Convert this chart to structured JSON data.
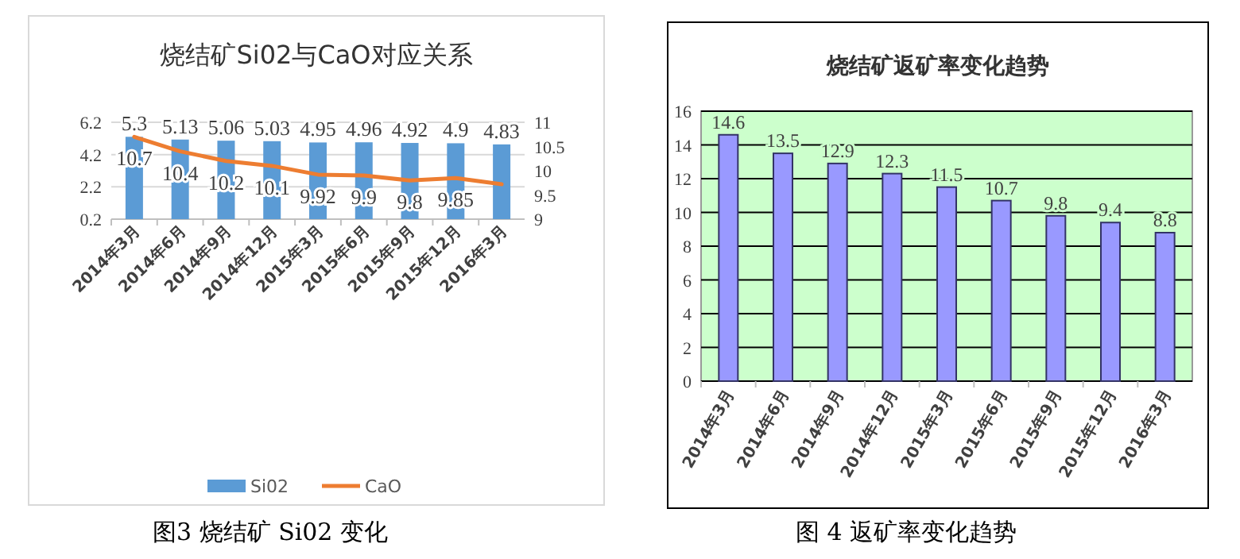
{
  "chart_data": [
    {
      "type": "bar",
      "title": "烧结矿Si02与CaO对应关系",
      "categories": [
        "2014年3月",
        "2014年6月",
        "2014年9月",
        "2014年12月",
        "2015年3月",
        "2015年6月",
        "2015年9月",
        "2015年12月",
        "2016年3月"
      ],
      "series": [
        {
          "name": "Si02",
          "color": "#5b9bd5",
          "values": [
            5.3,
            5.13,
            5.06,
            5.03,
            4.95,
            4.96,
            4.92,
            4.9,
            4.83
          ],
          "value_labels": [
            "5.3",
            "5.13",
            "5.06",
            "5.03",
            "4.95",
            "4.96",
            "4.92",
            "4.9",
            "4.83"
          ]
        },
        {
          "type": "line",
          "name": "CaO",
          "color": "#ed7d31",
          "axis": "y2",
          "values": [
            10.7,
            10.4,
            10.2,
            10.1,
            9.92,
            9.9,
            9.8,
            9.85,
            9.72
          ],
          "value_labels": [
            "10.7",
            "10.4",
            "10.2",
            "10.1",
            "9.92",
            "9.9",
            "9.8",
            "9.85",
            null
          ]
        }
      ],
      "ylim": [
        0.2,
        6.2
      ],
      "yticks": [
        {
          "value": 0.2,
          "label": "0.2"
        },
        {
          "value": 2.2,
          "label": "2.2"
        },
        {
          "value": 4.2,
          "label": "4.2"
        },
        {
          "value": 6.2,
          "label": "6.2"
        }
      ],
      "y2lim": [
        9,
        11
      ],
      "y2ticks": [
        9,
        9.5,
        10,
        10.5,
        11
      ],
      "grid": "y",
      "legend": "bottom",
      "annotations": [
        "图3  烧结矿 Si02 变化"
      ]
    },
    {
      "type": "bar",
      "title": "烧结矿返矿率变化趋势",
      "categories": [
        "2014年3月",
        "2014年6月",
        "2014年9月",
        "2014年12月",
        "2015年3月",
        "2015年6月",
        "2015年9月",
        "2015年12月",
        "2016年3月"
      ],
      "series": [
        {
          "color": "#9999ff",
          "values": [
            14.6,
            13.5,
            12.9,
            12.3,
            11.5,
            10.7,
            9.8,
            9.4,
            8.8
          ]
        }
      ],
      "ylim": [
        0,
        16
      ],
      "yticks": [
        0,
        2,
        4,
        6,
        8,
        10,
        12,
        14,
        16
      ],
      "grid": "y",
      "data_labels": true,
      "annotations": [
        "图 4  返矿率变化趋势"
      ]
    }
  ]
}
